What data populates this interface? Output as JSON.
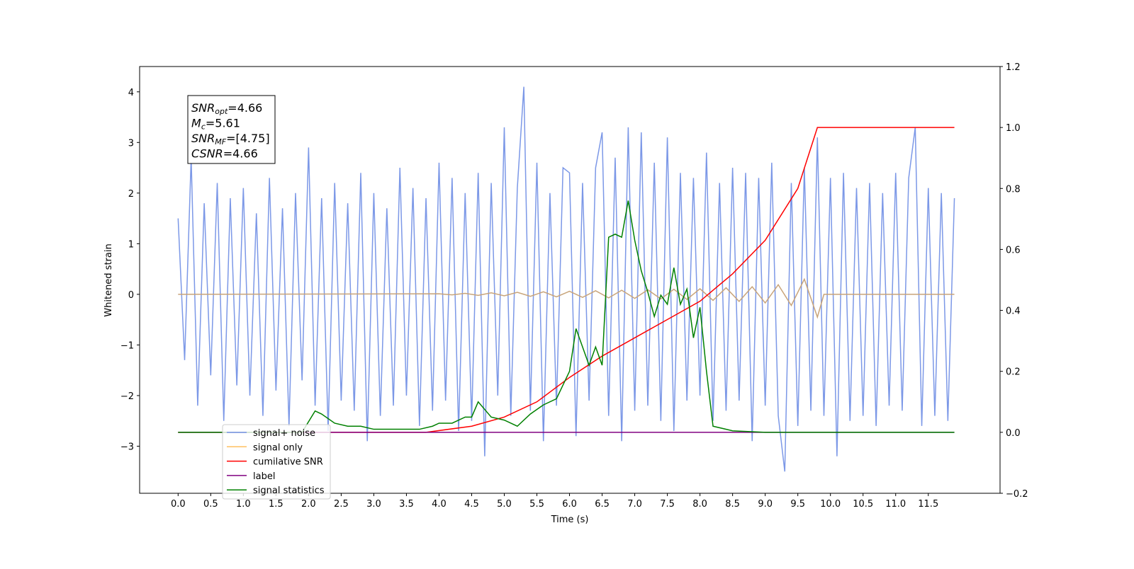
{
  "chart_data": {
    "type": "line",
    "xlabel": "Time (s)",
    "ylabel": "Whitened strain",
    "xlim": [
      -0.59,
      12.6
    ],
    "ylim": [
      -3.93,
      4.5
    ],
    "y2lim": [
      -0.2,
      1.2
    ],
    "xticks": [
      {
        "value": 0,
        "label": "0.0"
      },
      0.5,
      {
        "value": 1,
        "label": "1.0"
      },
      1.5,
      {
        "value": 2,
        "label": "2.0"
      },
      2.5,
      {
        "value": 3,
        "label": "3.0"
      },
      3.5,
      {
        "value": 4,
        "label": "4.0"
      },
      4.5,
      {
        "value": 5,
        "label": "5.0"
      },
      5.5,
      {
        "value": 6,
        "label": "6.0"
      },
      6.5,
      {
        "value": 7,
        "label": "7.0"
      },
      7.5,
      {
        "value": 8,
        "label": "8.0"
      },
      8.5,
      {
        "value": 9,
        "label": "9.0"
      },
      9.5,
      {
        "value": 10,
        "label": "10.0"
      },
      10.5,
      {
        "value": 11,
        "label": "11.0"
      },
      11.5
    ],
    "yticks": [
      {
        "value": -3,
        "label": "−3"
      },
      {
        "value": -2,
        "label": "−2"
      },
      {
        "value": -1,
        "label": "−1"
      },
      0,
      1,
      2,
      3,
      4
    ],
    "y2ticks": [
      {
        "value": -0.2,
        "label": "−0.2"
      },
      {
        "value": 0,
        "label": "0.0"
      },
      0.2,
      0.4,
      0.6,
      0.8,
      {
        "value": 1,
        "label": "1.0"
      },
      1.2
    ],
    "annotations": [
      {
        "text": "SNR",
        "sub": "opt",
        "rest": "=4.66"
      },
      {
        "text": "M",
        "sub": "c",
        "rest": "=5.61"
      },
      {
        "text": "SNR",
        "sub": "MF",
        "rest": "=[4.75]"
      },
      {
        "text": "CSNR",
        "rest": "=4.66"
      }
    ],
    "series": [
      {
        "name": "signal+ noise",
        "color": "#7592e6",
        "x": [
          0,
          0.1,
          0.2,
          0.3,
          0.4,
          0.5,
          0.6,
          0.7,
          0.8,
          0.9,
          1,
          1.1,
          1.2,
          1.3,
          1.4,
          1.5,
          1.6,
          1.7,
          1.8,
          1.9,
          2,
          2.1,
          2.2,
          2.3,
          2.4,
          2.5,
          2.6,
          2.7,
          2.8,
          2.9,
          3,
          3.1,
          3.2,
          3.3,
          3.4,
          3.5,
          3.6,
          3.7,
          3.8,
          3.9,
          4,
          4.1,
          4.2,
          4.3,
          4.4,
          4.5,
          4.6,
          4.7,
          4.8,
          4.9,
          5,
          5.1,
          5.2,
          5.3,
          5.4,
          5.5,
          5.6,
          5.7,
          5.8,
          5.9,
          6,
          6.1,
          6.2,
          6.3,
          6.4,
          6.5,
          6.6,
          6.7,
          6.8,
          6.9,
          7,
          7.1,
          7.2,
          7.3,
          7.4,
          7.5,
          7.6,
          7.7,
          7.8,
          7.9,
          8,
          8.1,
          8.2,
          8.3,
          8.4,
          8.5,
          8.6,
          8.7,
          8.8,
          8.9,
          9,
          9.1,
          9.2,
          9.3,
          9.4,
          9.5,
          9.6,
          9.7,
          9.8,
          9.9,
          10,
          10.1,
          10.2,
          10.3,
          10.4,
          10.5,
          10.6,
          10.7,
          10.8,
          10.9,
          11,
          11.1,
          11.2,
          11.3,
          11.4,
          11.5,
          11.6,
          11.7,
          11.8,
          11.9
        ],
        "values": [
          1.5,
          -1.3,
          2.7,
          -2.2,
          1.8,
          -1.6,
          2.2,
          -2.5,
          1.9,
          -1.8,
          2.1,
          -2.0,
          1.6,
          -2.4,
          2.3,
          -1.9,
          1.7,
          -2.6,
          2.0,
          -1.7,
          2.9,
          -2.2,
          1.9,
          -2.7,
          2.2,
          -2.1,
          1.8,
          -2.3,
          2.4,
          -2.9,
          2.0,
          -2.4,
          1.7,
          -2.2,
          2.5,
          -2.0,
          2.1,
          -2.6,
          1.9,
          -2.3,
          2.6,
          -2.1,
          2.3,
          -2.7,
          2.0,
          -2.5,
          2.4,
          -3.2,
          2.2,
          -2.0,
          3.3,
          -2.4,
          2.1,
          4.1,
          -2.3,
          2.6,
          -2.9,
          2.0,
          -2.2,
          2.5,
          2.4,
          -2.8,
          2.2,
          -2.1,
          2.5,
          3.2,
          -2.4,
          2.7,
          -2.9,
          3.3,
          -2.3,
          3.2,
          -2.2,
          2.6,
          -2.5,
          3.1,
          -2.7,
          2.4,
          -2.1,
          2.3,
          -2.0,
          2.8,
          -2.5,
          2.2,
          -2.3,
          2.5,
          -2.1,
          2.4,
          -2.9,
          2.3,
          -2.2,
          2.6,
          -2.4,
          -3.5,
          2.2,
          -2.6,
          2.5,
          -2.3,
          3.1,
          -2.4,
          2.3,
          -3.2,
          2.4,
          -2.5,
          2.1,
          -2.4,
          2.2,
          -2.6,
          2.0,
          -2.2,
          2.4,
          -2.3,
          2.3,
          3.3,
          -2.6,
          2.1,
          -2.4,
          2.0,
          -2.5,
          1.9
        ]
      },
      {
        "name": "signal only",
        "color": "#c8a47a",
        "x": [
          0,
          4,
          4.2,
          4.4,
          4.6,
          4.8,
          5,
          5.2,
          5.4,
          5.6,
          5.8,
          6,
          6.2,
          6.4,
          6.6,
          6.8,
          7,
          7.2,
          7.4,
          7.6,
          7.8,
          8,
          8.2,
          8.4,
          8.6,
          8.8,
          9,
          9.2,
          9.4,
          9.6,
          9.8,
          9.9,
          11.9
        ],
        "values": [
          0,
          0.01,
          -0.01,
          0.02,
          -0.02,
          0.03,
          -0.03,
          0.04,
          -0.04,
          0.05,
          -0.05,
          0.06,
          -0.06,
          0.07,
          -0.07,
          0.08,
          -0.08,
          0.09,
          -0.09,
          0.1,
          -0.1,
          0.11,
          -0.12,
          0.13,
          -0.14,
          0.15,
          -0.17,
          0.19,
          -0.22,
          0.3,
          -0.45,
          0,
          0
        ]
      },
      {
        "name": "cumilative SNR",
        "color": "#ff0000",
        "axis": "y2",
        "x": [
          0,
          3.8,
          4.5,
          5,
          5.5,
          6,
          6.5,
          7,
          7.5,
          8,
          8.5,
          9,
          9.5,
          9.8,
          11.9
        ],
        "values": [
          0,
          0,
          0.02,
          0.05,
          0.1,
          0.18,
          0.25,
          0.31,
          0.37,
          0.43,
          0.52,
          0.63,
          0.8,
          1.0,
          1.0
        ]
      },
      {
        "name": "label",
        "color": "#800080",
        "axis": "y2",
        "x": [
          0,
          11.9
        ],
        "values": [
          0,
          0
        ]
      },
      {
        "name": "signal statistics",
        "color": "#008000",
        "axis": "y2",
        "x": [
          0,
          1.9,
          2.1,
          2.2,
          2.4,
          2.6,
          2.8,
          3.0,
          3.2,
          3.5,
          3.7,
          3.9,
          4.0,
          4.2,
          4.4,
          4.5,
          4.6,
          4.8,
          5.0,
          5.2,
          5.4,
          5.6,
          5.8,
          6.0,
          6.1,
          6.3,
          6.4,
          6.5,
          6.6,
          6.7,
          6.8,
          6.9,
          7.0,
          7.1,
          7.2,
          7.3,
          7.4,
          7.5,
          7.6,
          7.7,
          7.8,
          7.9,
          8.0,
          8.1,
          8.2,
          8.5,
          9.0,
          11.9
        ],
        "values": [
          0,
          0,
          0.07,
          0.06,
          0.03,
          0.02,
          0.02,
          0.01,
          0.01,
          0.01,
          0.01,
          0.02,
          0.03,
          0.03,
          0.05,
          0.05,
          0.1,
          0.05,
          0.04,
          0.02,
          0.06,
          0.09,
          0.11,
          0.2,
          0.34,
          0.22,
          0.28,
          0.22,
          0.64,
          0.65,
          0.64,
          0.76,
          0.63,
          0.53,
          0.46,
          0.38,
          0.45,
          0.42,
          0.54,
          0.42,
          0.47,
          0.31,
          0.41,
          0.2,
          0.02,
          0.005,
          0,
          0
        ]
      }
    ]
  }
}
